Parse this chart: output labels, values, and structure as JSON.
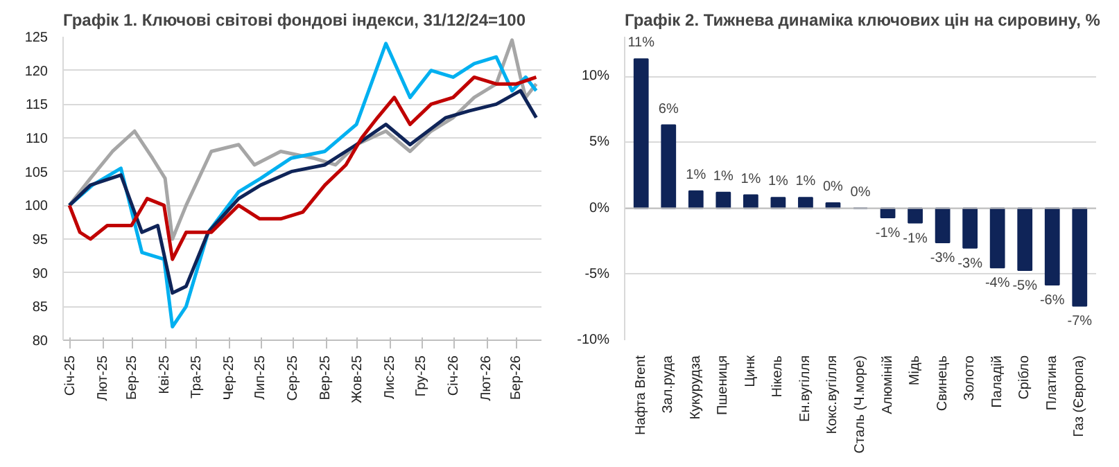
{
  "chart_data": [
    {
      "type": "line",
      "title": "Графік 1. Ключові світові фондові індекси, 31/12/24=100",
      "ylim": [
        80,
        125
      ],
      "yticks": [
        80,
        85,
        90,
        95,
        100,
        105,
        110,
        115,
        120,
        125
      ],
      "grid": "y",
      "line_style": "solid",
      "marker": "none",
      "xlim": [
        "2024-12-25",
        "2026-03-25"
      ],
      "xticks": [
        {
          "value": "2025-01-01",
          "label": "Січ-25"
        },
        {
          "value": "2025-02-01",
          "label": "Лют-25"
        },
        {
          "value": "2025-03-01",
          "label": "Бер-25"
        },
        {
          "value": "2025-04-01",
          "label": "Кві-25"
        },
        {
          "value": "2025-05-01",
          "label": "Тра-25"
        },
        {
          "value": "2025-06-01",
          "label": "Чер-25"
        },
        {
          "value": "2025-07-01",
          "label": "Лип-25"
        },
        {
          "value": "2025-08-01",
          "label": "Сер-25"
        },
        {
          "value": "2025-09-01",
          "label": "Вер-25"
        },
        {
          "value": "2025-10-01",
          "label": "Жов-25"
        },
        {
          "value": "2025-11-01",
          "label": "Лис-25"
        },
        {
          "value": "2025-12-01",
          "label": "Гру-25"
        },
        {
          "value": "2026-01-01",
          "label": "Січ-26"
        },
        {
          "value": "2026-02-01",
          "label": "Лют-26"
        },
        {
          "value": "2026-03-01",
          "label": "Бер-26"
        }
      ],
      "series": [
        {
          "color": "#a6a6a6",
          "x": [
            "2024-12-31",
            "2025-01-20",
            "2025-02-10",
            "2025-03-03",
            "2025-03-20",
            "2025-04-01",
            "2025-04-08",
            "2025-04-21",
            "2025-05-15",
            "2025-06-10",
            "2025-06-25",
            "2025-07-20",
            "2025-08-20",
            "2025-09-10",
            "2025-09-30",
            "2025-10-28",
            "2025-11-20",
            "2025-12-10",
            "2025-12-31",
            "2026-01-20",
            "2026-02-10",
            "2026-02-25",
            "2026-03-05",
            "2026-03-10",
            "2026-03-20"
          ],
          "values": [
            100,
            104,
            108,
            111,
            107,
            104,
            95,
            100,
            108,
            109,
            106,
            108,
            107,
            106,
            109,
            111,
            108,
            111,
            113,
            116,
            118,
            124.5,
            119,
            116,
            118
          ]
        },
        {
          "color": "#00b0f0",
          "x": [
            "2024-12-31",
            "2025-01-22",
            "2025-02-18",
            "2025-03-10",
            "2025-03-31",
            "2025-04-08",
            "2025-04-21",
            "2025-05-12",
            "2025-06-10",
            "2025-07-01",
            "2025-07-30",
            "2025-08-31",
            "2025-09-30",
            "2025-10-28",
            "2025-11-20",
            "2025-12-10",
            "2025-12-31",
            "2026-01-20",
            "2026-02-10",
            "2026-02-25",
            "2026-03-10",
            "2026-03-20"
          ],
          "values": [
            100,
            103,
            105.5,
            93,
            92,
            82,
            85,
            96,
            102,
            104,
            107,
            108,
            112,
            124,
            116,
            120,
            119,
            121,
            122,
            117,
            119,
            117
          ]
        },
        {
          "color": "#0f2458",
          "x": [
            "2024-12-31",
            "2025-01-20",
            "2025-02-18",
            "2025-03-10",
            "2025-03-25",
            "2025-04-08",
            "2025-04-21",
            "2025-05-12",
            "2025-06-10",
            "2025-07-01",
            "2025-07-30",
            "2025-08-31",
            "2025-09-30",
            "2025-10-28",
            "2025-11-20",
            "2025-12-24",
            "2026-01-15",
            "2026-02-10",
            "2026-03-05",
            "2026-03-20"
          ],
          "values": [
            100,
            103,
            104.5,
            96,
            97,
            87,
            88,
            96,
            101,
            103,
            105,
            106,
            109,
            112,
            109,
            113,
            114,
            115,
            117,
            113
          ]
        },
        {
          "color": "#c00000",
          "x": [
            "2024-12-31",
            "2025-01-10",
            "2025-01-20",
            "2025-02-05",
            "2025-02-28",
            "2025-03-15",
            "2025-03-31",
            "2025-04-08",
            "2025-04-21",
            "2025-05-15",
            "2025-06-10",
            "2025-06-30",
            "2025-07-20",
            "2025-08-10",
            "2025-08-31",
            "2025-09-20",
            "2025-10-05",
            "2025-10-20",
            "2025-11-05",
            "2025-11-20",
            "2025-12-10",
            "2025-12-31",
            "2026-01-20",
            "2026-02-10",
            "2026-03-01",
            "2026-03-20"
          ],
          "values": [
            100,
            96,
            95,
            97,
            97,
            101,
            100,
            92,
            96,
            96,
            100,
            98,
            98,
            99,
            103,
            106,
            110,
            113,
            116,
            112,
            115,
            116,
            119,
            118,
            118,
            119
          ]
        }
      ]
    },
    {
      "type": "bar",
      "title": "Графік 2. Тижнева динаміка ключових цін на сировину, %",
      "categories": [
        "Нафта Brent",
        "Зал.руда",
        "Кукурудза",
        "Пшениця",
        "Цинк",
        "Нікель",
        "Ен.вугілля",
        "Кокс.вугілля",
        "Сталь (Ч.море)",
        "Алюміній",
        "Мідь",
        "Свинець",
        "Золото",
        "Паладій",
        "Срібло",
        "Платина",
        "Газ (Європа)"
      ],
      "values": [
        11.3,
        6.3,
        1.3,
        1.2,
        1.0,
        0.8,
        0.8,
        0.4,
        0.0,
        -0.7,
        -1.1,
        -2.6,
        -3.0,
        -4.5,
        -4.7,
        -5.8,
        -7.4
      ],
      "value_labels": [
        "11%",
        "6%",
        "1%",
        "1%",
        "1%",
        "1%",
        "1%",
        "0%",
        "0%",
        "-1%",
        "-1%",
        "-3%",
        "-3%",
        "-4%",
        "-5%",
        "-6%",
        "-7%"
      ],
      "color": "#0f2458",
      "ylim": [
        -10,
        13
      ],
      "yticks": [
        {
          "value": -10,
          "label": "-10%"
        },
        {
          "value": -5,
          "label": "-5%"
        },
        {
          "value": 0,
          "label": "0%"
        },
        {
          "value": 5,
          "label": "5%"
        },
        {
          "value": 10,
          "label": "10%"
        }
      ],
      "grid": "y"
    }
  ]
}
